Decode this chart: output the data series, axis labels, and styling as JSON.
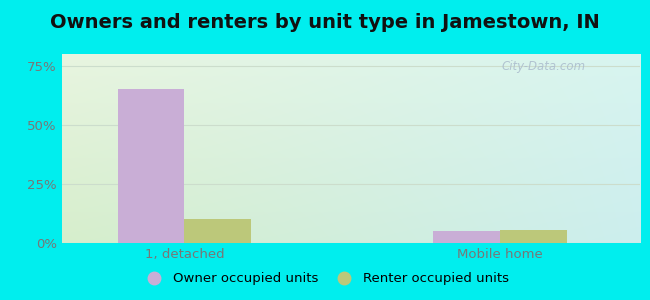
{
  "title": "Owners and renters by unit type in Jamestown, IN",
  "categories": [
    "1, detached",
    "Mobile home"
  ],
  "owner_values": [
    65.0,
    5.0
  ],
  "renter_values": [
    10.0,
    5.5
  ],
  "owner_color": "#c9aed6",
  "renter_color": "#bcc87a",
  "yticks": [
    0,
    25,
    50,
    75
  ],
  "ytick_labels": [
    "0%",
    "25%",
    "50%",
    "75%"
  ],
  "ylim": [
    0,
    80
  ],
  "bar_width": 0.38,
  "group_positions": [
    0.7,
    2.5
  ],
  "xlim": [
    0.0,
    3.3
  ],
  "legend_labels": [
    "Owner occupied units",
    "Renter occupied units"
  ],
  "watermark": "City-Data.com",
  "outer_bg": "#00eeee",
  "title_fontsize": 14,
  "tick_fontsize": 9.5,
  "legend_fontsize": 9.5,
  "grid_color": "#ccddcc",
  "tick_color": "#777777"
}
